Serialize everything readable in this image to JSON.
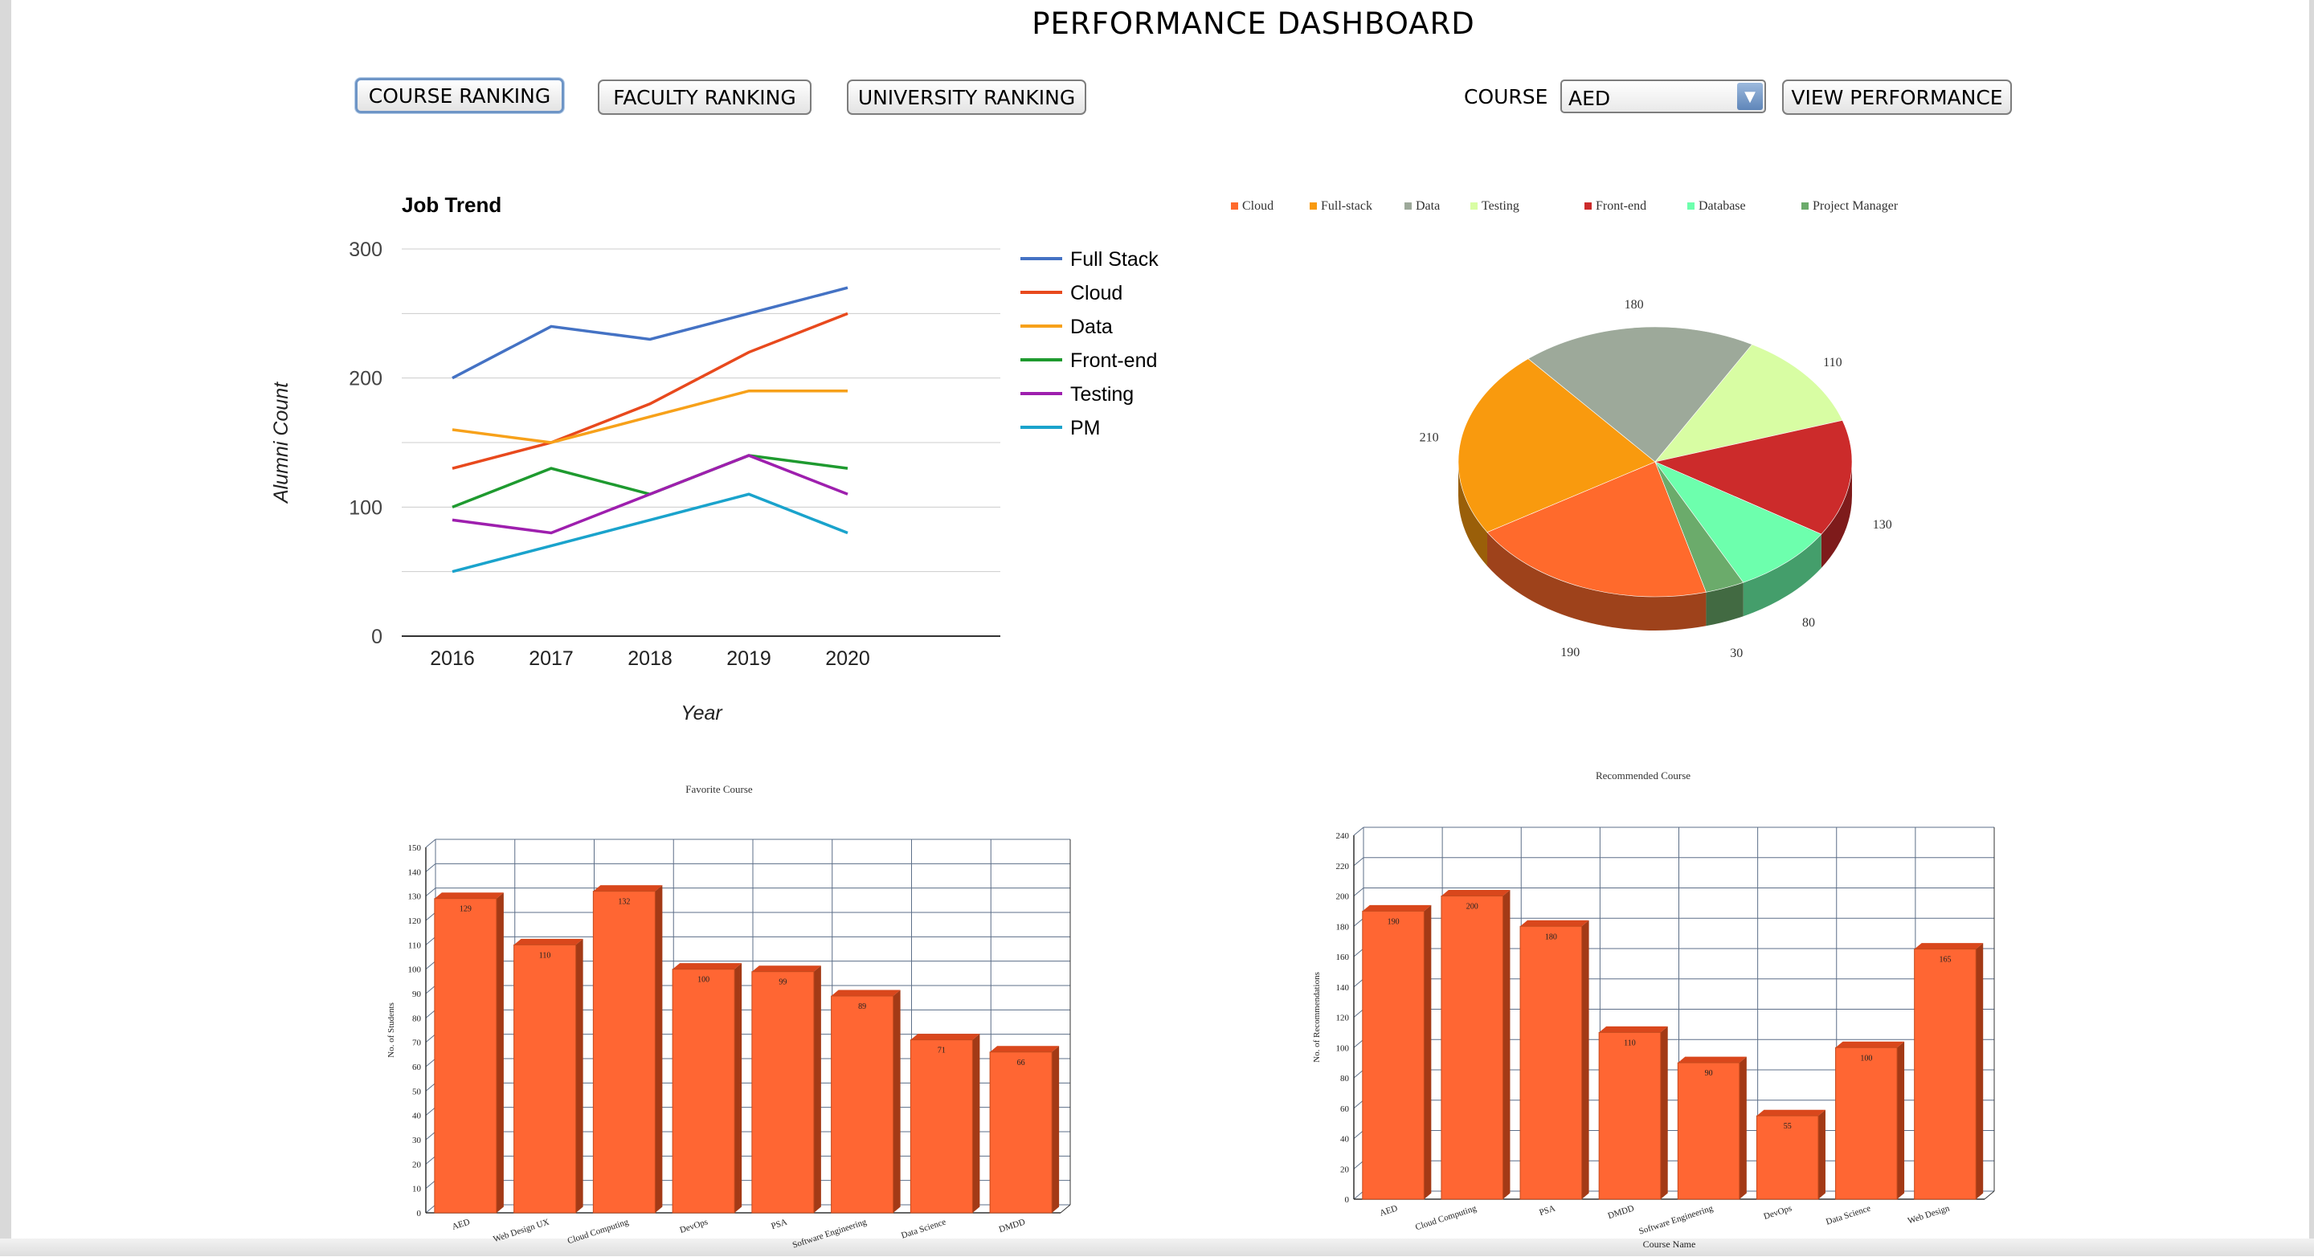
{
  "window": {
    "title": "PERFORMANCE DASHBOARD"
  },
  "toolbar": {
    "course_ranking": "COURSE RANKING",
    "faculty_ranking": "FACULTY RANKING",
    "university_ranking": "UNIVERSITY RANKING",
    "course_label": "COURSE",
    "course_value": "AED",
    "view_performance": "VIEW PERFORMANCE"
  },
  "icons": {
    "dropdown": "chevron-down-icon",
    "dropdown_glyph": "▼"
  },
  "chart_data": [
    {
      "type": "line",
      "title": "Job Trend",
      "xlabel": "Year",
      "ylabel": "Alumni Count",
      "x": [
        "2016",
        "2017",
        "2018",
        "2019",
        "2020"
      ],
      "ylim": [
        0,
        300
      ],
      "yticks": [
        "0",
        "100",
        "200",
        "300"
      ],
      "grid": true,
      "legend": "right",
      "series": [
        {
          "name": "Full Stack",
          "color": "#4472c4",
          "values": [
            200,
            240,
            230,
            250,
            270
          ]
        },
        {
          "name": "Cloud",
          "color": "#e8491d",
          "values": [
            130,
            150,
            180,
            220,
            250
          ]
        },
        {
          "name": "Data",
          "color": "#f7a11a",
          "values": [
            160,
            150,
            170,
            190,
            190
          ]
        },
        {
          "name": "Front-end",
          "color": "#1e9a2f",
          "values": [
            100,
            130,
            110,
            140,
            130
          ]
        },
        {
          "name": "Testing",
          "color": "#9e1fae",
          "values": [
            90,
            80,
            110,
            140,
            110
          ]
        },
        {
          "name": "PM",
          "color": "#1aa3cc",
          "values": [
            50,
            70,
            90,
            110,
            80
          ]
        }
      ]
    },
    {
      "type": "pie",
      "legend": "top",
      "legend_entries": [
        "Cloud",
        "Full-stack",
        "Data",
        "Testing",
        "Front-end",
        "Database",
        "Project Manager"
      ],
      "slices": [
        {
          "name": "Cloud",
          "value": 190,
          "label": "190",
          "color": "#ff6a2c"
        },
        {
          "name": "Full-stack",
          "value": 210,
          "label": "210",
          "color": "#f99a0e"
        },
        {
          "name": "Data",
          "value": 180,
          "label": "180",
          "color": "#9da99a"
        },
        {
          "name": "Testing",
          "value": 110,
          "label": "110",
          "color": "#d8fda3"
        },
        {
          "name": "Front-end",
          "value": 130,
          "label": "130",
          "color": "#cc2b2b"
        },
        {
          "name": "Database",
          "value": 80,
          "label": "80",
          "color": "#6dffad"
        },
        {
          "name": "Project Manager",
          "value": 30,
          "label": "30",
          "color": "#6bab6b"
        }
      ]
    },
    {
      "type": "bar",
      "title": "Favorite Course",
      "ylabel": "No. of Students",
      "xlabel": "",
      "ylim": [
        0,
        150
      ],
      "ytick_step": 10,
      "grid": true,
      "categories": [
        "AED",
        "Web Design UX",
        "Cloud Computing",
        "DevOps",
        "PSA",
        "Software Engineering",
        "Data Science",
        "DMDD"
      ],
      "values": [
        129,
        110,
        132,
        100,
        99,
        89,
        71,
        66
      ]
    },
    {
      "type": "bar",
      "title": "Recommended Course",
      "ylabel": "No. of Recommendations",
      "xlabel": "Course Name",
      "ylim": [
        0,
        240
      ],
      "ytick_step": 20,
      "grid": true,
      "categories": [
        "AED",
        "Cloud Computing",
        "PSA",
        "DMDD",
        "Software Engineering",
        "DevOps",
        "Data Science",
        "Web Design"
      ],
      "values": [
        190,
        200,
        180,
        110,
        90,
        55,
        100,
        165
      ]
    }
  ]
}
